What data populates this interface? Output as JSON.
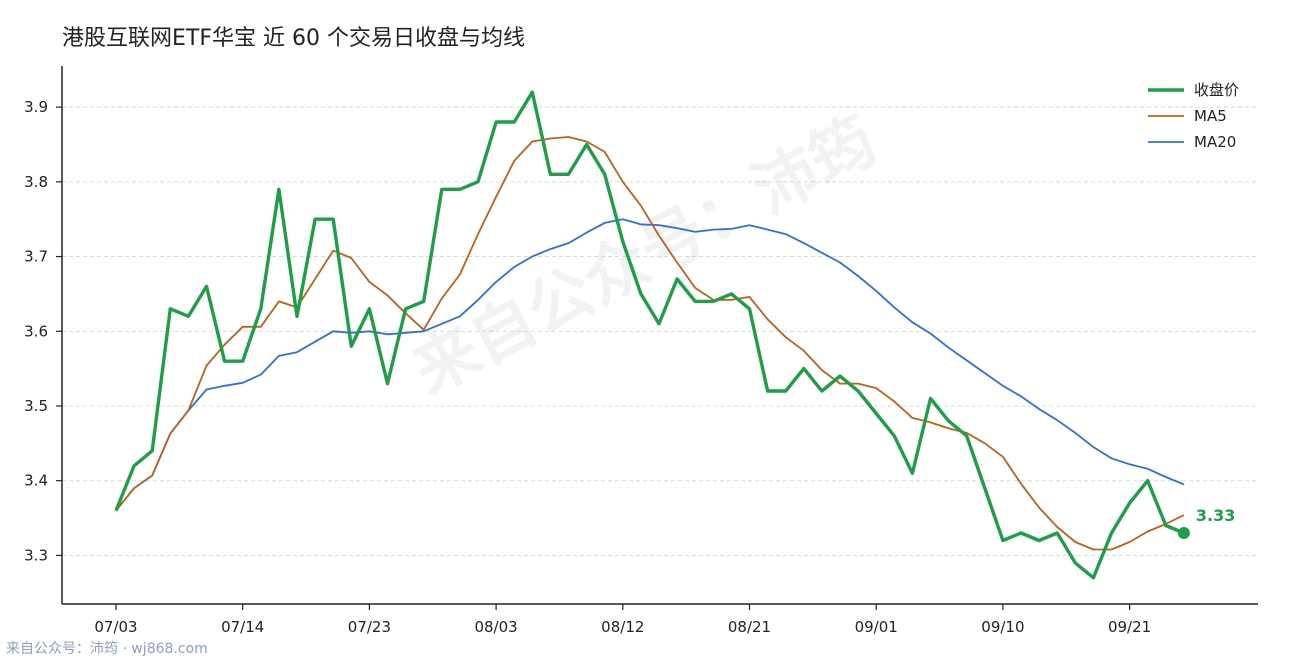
{
  "chart_data": {
    "type": "line",
    "title": "港股互联网ETF华宝 近 60 个交易日收盘与均线",
    "xlabel": "",
    "ylabel": "",
    "ylim": [
      3.235,
      3.955
    ],
    "yticks": [
      "3.3",
      "3.4",
      "3.5",
      "3.6",
      "3.7",
      "3.8",
      "3.9"
    ],
    "x_tick_labels": [
      "07/03",
      "07/14",
      "07/23",
      "08/03",
      "08/12",
      "08/21",
      "09/01",
      "09/10",
      "09/21"
    ],
    "x_tick_index": [
      0,
      7,
      14,
      21,
      28,
      35,
      42,
      49,
      56
    ],
    "legend_position": "top-right",
    "grid": "horizontal dashed",
    "series": [
      {
        "name": "收盘价",
        "color": "#1e9e46",
        "values": [
          3.36,
          3.42,
          3.44,
          3.63,
          3.62,
          3.66,
          3.56,
          3.56,
          3.63,
          3.79,
          3.62,
          3.75,
          3.75,
          3.58,
          3.63,
          3.53,
          3.63,
          3.64,
          3.79,
          3.79,
          3.8,
          3.88,
          3.88,
          3.92,
          3.81,
          3.81,
          3.85,
          3.81,
          3.72,
          3.65,
          3.61,
          3.67,
          3.64,
          3.64,
          3.65,
          3.63,
          3.52,
          3.52,
          3.55,
          3.52,
          3.54,
          3.52,
          3.49,
          3.46,
          3.41,
          3.51,
          3.48,
          3.46,
          3.39,
          3.32,
          3.33,
          3.32,
          3.33,
          3.29,
          3.27,
          3.33,
          3.37,
          3.4,
          3.34,
          3.33
        ]
      },
      {
        "name": "MA5",
        "color": "#c0601a",
        "values": [
          3.36,
          3.39,
          3.407,
          3.463,
          3.494,
          3.554,
          3.582,
          3.606,
          3.606,
          3.64,
          3.632,
          3.67,
          3.708,
          3.698,
          3.666,
          3.648,
          3.624,
          3.602,
          3.644,
          3.676,
          3.73,
          3.78,
          3.828,
          3.854,
          3.858,
          3.86,
          3.854,
          3.84,
          3.8,
          3.768,
          3.728,
          3.692,
          3.658,
          3.642,
          3.642,
          3.646,
          3.616,
          3.592,
          3.574,
          3.548,
          3.53,
          3.53,
          3.524,
          3.506,
          3.484,
          3.478,
          3.47,
          3.464,
          3.45,
          3.432,
          3.396,
          3.364,
          3.338,
          3.318,
          3.308,
          3.308,
          3.318,
          3.332,
          3.342,
          3.354
        ]
      },
      {
        "name": "MA20",
        "color": "#2f6ee0",
        "values": [
          3.36,
          3.39,
          3.407,
          3.463,
          3.494,
          3.522,
          3.527,
          3.531,
          3.542,
          3.567,
          3.572,
          3.586,
          3.6,
          3.598,
          3.6,
          3.596,
          3.598,
          3.6,
          3.61,
          3.62,
          3.642,
          3.666,
          3.686,
          3.7,
          3.71,
          3.718,
          3.732,
          3.745,
          3.75,
          3.743,
          3.742,
          3.738,
          3.733,
          3.736,
          3.737,
          3.742,
          3.736,
          3.73,
          3.718,
          3.705,
          3.692,
          3.674,
          3.654,
          3.632,
          3.612,
          3.597,
          3.578,
          3.561,
          3.544,
          3.527,
          3.513,
          3.496,
          3.481,
          3.464,
          3.445,
          3.43,
          3.422,
          3.416,
          3.405,
          3.395
        ]
      }
    ],
    "end_label": "3.33"
  },
  "watermark": "来自公众号：沛筠",
  "footer": "来自公众号：沛筠 · wj868.com"
}
